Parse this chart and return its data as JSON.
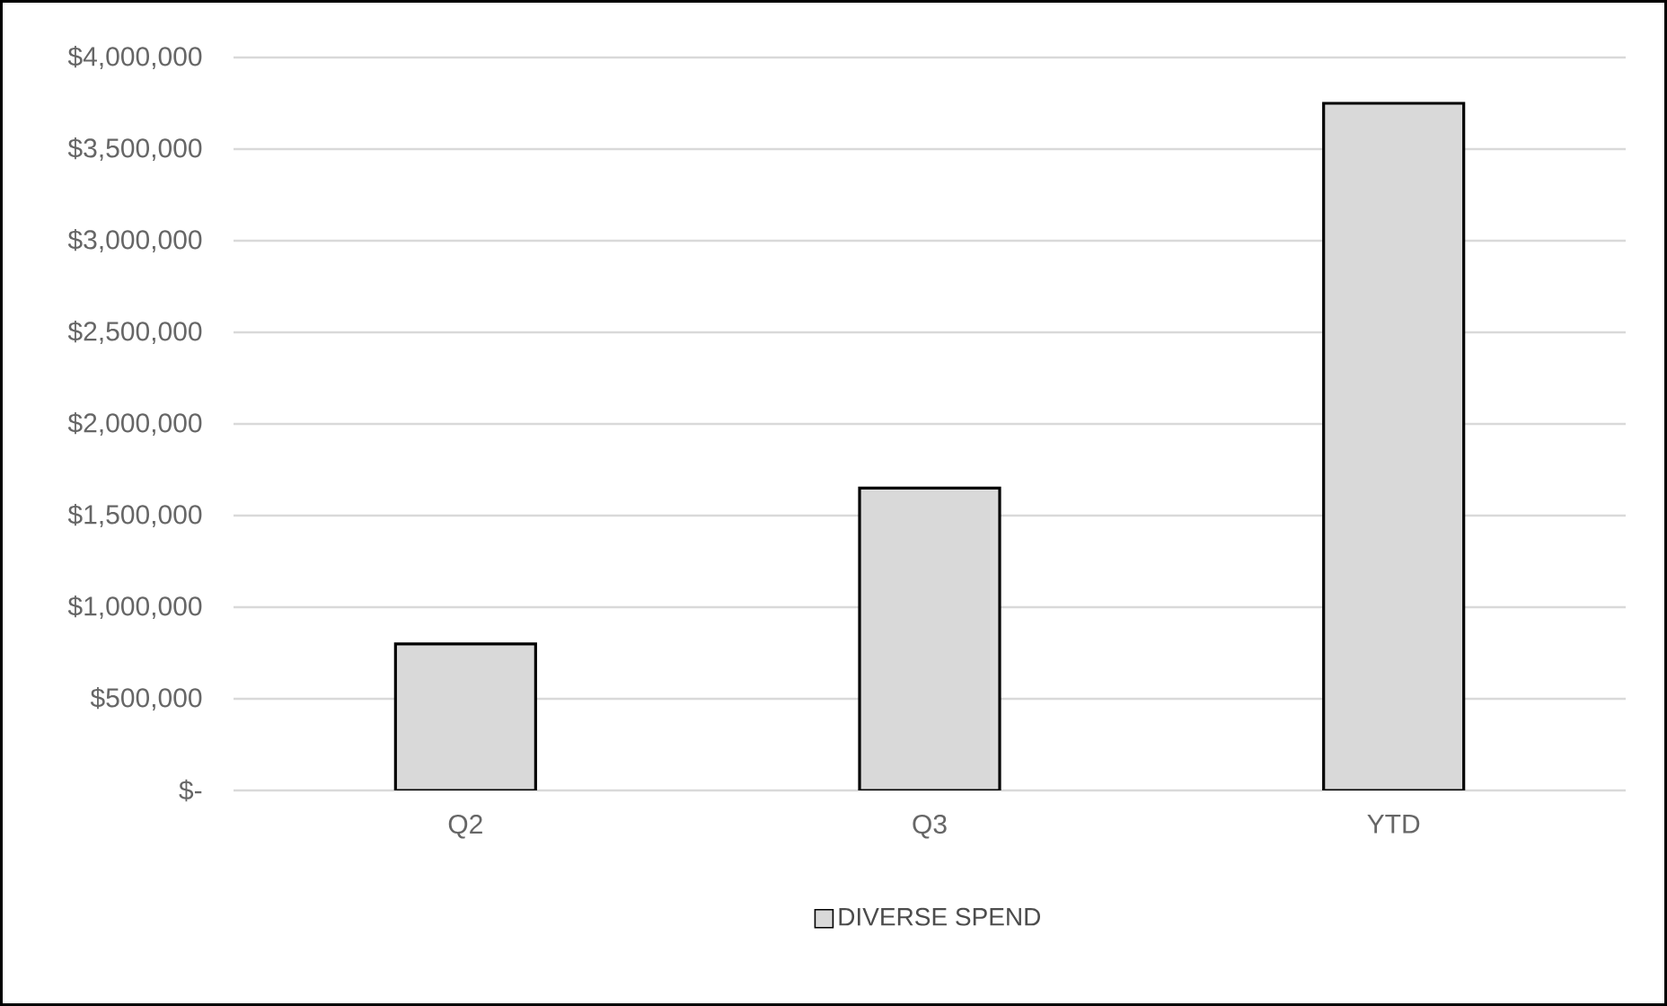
{
  "chart_data": {
    "type": "bar",
    "categories": [
      "Q2",
      "Q3",
      "YTD"
    ],
    "series": [
      {
        "name": "DIVERSE SPEND",
        "color": "#d9d9d9",
        "values": [
          800000,
          1650000,
          3750000
        ]
      }
    ],
    "ylim": [
      0,
      4000000
    ],
    "yticks": [
      {
        "value": 0,
        "label": "$-"
      },
      {
        "value": 500000,
        "label": "$500,000"
      },
      {
        "value": 1000000,
        "label": "$1,000,000"
      },
      {
        "value": 1500000,
        "label": "$1,500,000"
      },
      {
        "value": 2000000,
        "label": "$2,000,000"
      },
      {
        "value": 2500000,
        "label": "$2,500,000"
      },
      {
        "value": 3000000,
        "label": "$3,000,000"
      },
      {
        "value": 3500000,
        "label": "$3,500,000"
      },
      {
        "value": 4000000,
        "label": "$4,000,000"
      }
    ],
    "grid": "y",
    "legend": "bottom"
  }
}
